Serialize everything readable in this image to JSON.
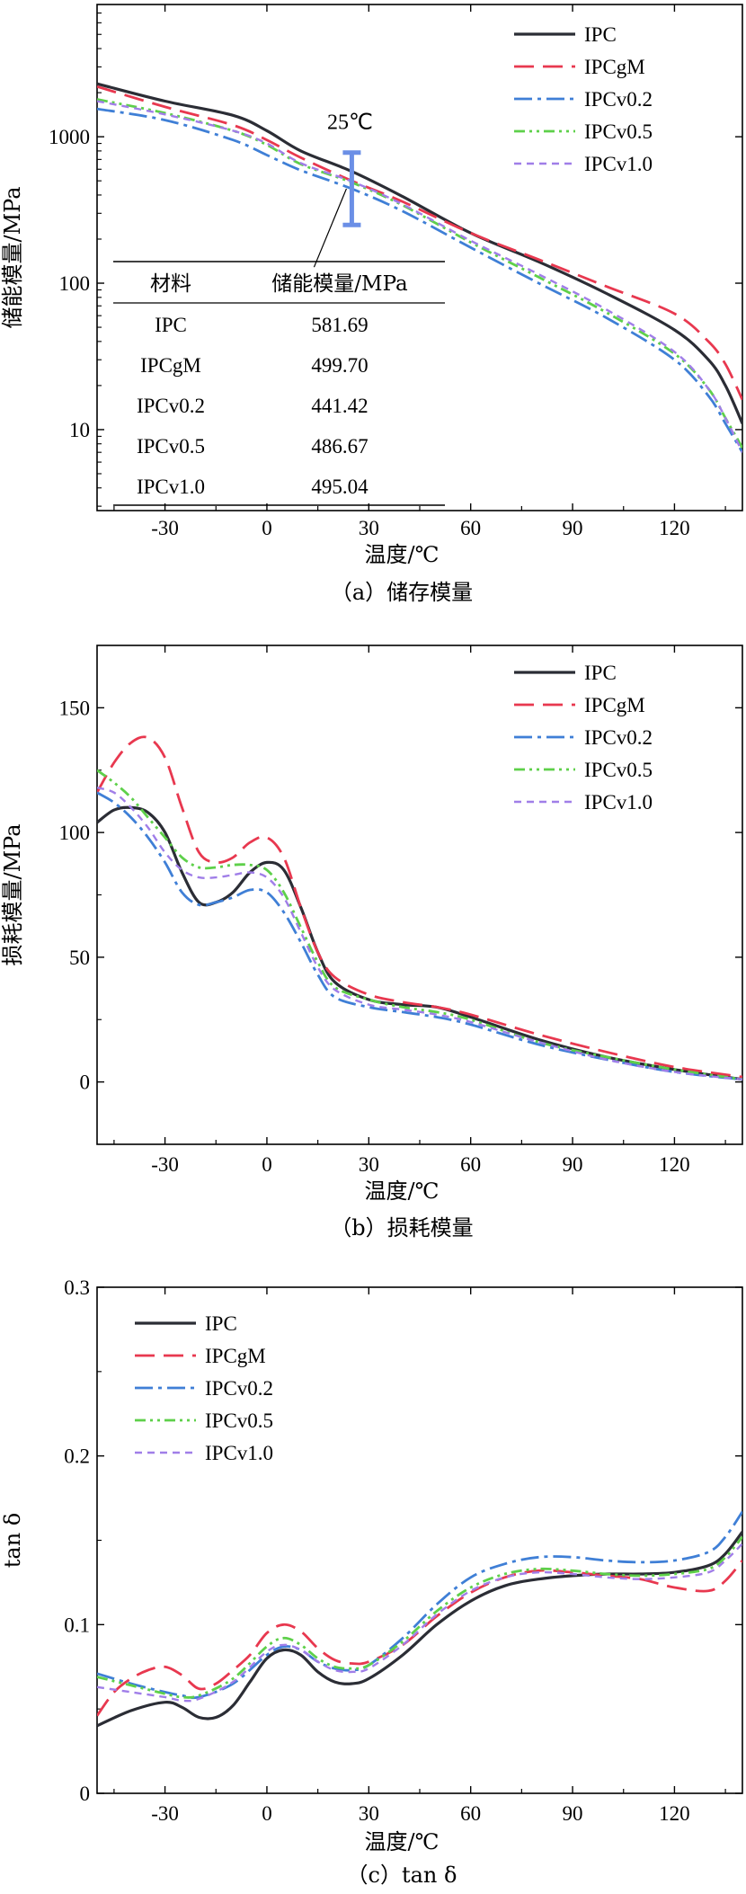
{
  "styles": {
    "IPC": {
      "color": "#2b2d35",
      "dash": "",
      "width": 3.2
    },
    "IPCgM": {
      "color": "#e8384f",
      "dash": "22 10",
      "width": 2.8
    },
    "IPCv0.2": {
      "color": "#3f7fd6",
      "dash": "20 6 4 6",
      "width": 2.8
    },
    "IPCv0.5": {
      "color": "#5ed04a",
      "dash": "12 5 3 5 3 5",
      "width": 2.8
    },
    "IPCv1.0": {
      "color": "#a07ee8",
      "dash": "8 6",
      "width": 2.4
    }
  },
  "chart_data": [
    {
      "type": "line",
      "caption": "（a）储存模量",
      "xlabel": "温度/℃",
      "ylabel": "储能模量/MPa",
      "yscale": "log",
      "xlim": [
        -50,
        140
      ],
      "ylim": [
        2.8,
        8000
      ],
      "xticks": [
        -30,
        0,
        30,
        60,
        90,
        120
      ],
      "yticks": [
        10,
        100,
        1000
      ],
      "legend_position": "top-right",
      "annotation": {
        "label": "25℃",
        "x": 25,
        "low": 250,
        "high": 780
      },
      "table": {
        "headers": [
          "材料",
          "储能模量/MPa"
        ],
        "rows": [
          [
            "IPC",
            "581.69"
          ],
          [
            "IPCgM",
            "499.70"
          ],
          [
            "IPCv0.2",
            "441.42"
          ],
          [
            "IPCv0.5",
            "486.67"
          ],
          [
            "IPCv1.0",
            "495.04"
          ]
        ]
      },
      "series": [
        {
          "name": "IPC",
          "x": [
            -50,
            -30,
            -10,
            0,
            10,
            25,
            40,
            60,
            80,
            100,
            120,
            130,
            135,
            140
          ],
          "y": [
            2300,
            1750,
            1400,
            1100,
            800,
            580,
            390,
            220,
            140,
            85,
            48,
            30,
            20,
            11
          ]
        },
        {
          "name": "IPCgM",
          "x": [
            -50,
            -30,
            -10,
            0,
            10,
            25,
            40,
            60,
            80,
            100,
            120,
            130,
            135,
            140
          ],
          "y": [
            2200,
            1600,
            1200,
            950,
            720,
            500,
            360,
            220,
            145,
            95,
            62,
            40,
            28,
            16
          ]
        },
        {
          "name": "IPCv0.2",
          "x": [
            -50,
            -30,
            -10,
            0,
            10,
            25,
            40,
            60,
            80,
            100,
            120,
            130,
            135,
            140
          ],
          "y": [
            1550,
            1300,
            950,
            750,
            590,
            441,
            310,
            175,
            100,
            58,
            30,
            17,
            11,
            7
          ]
        },
        {
          "name": "IPCv0.5",
          "x": [
            -50,
            -30,
            -10,
            0,
            10,
            25,
            40,
            60,
            80,
            100,
            120,
            130,
            135,
            140
          ],
          "y": [
            1800,
            1450,
            1100,
            880,
            650,
            487,
            340,
            190,
            110,
            63,
            33,
            19,
            12,
            7.5
          ]
        },
        {
          "name": "IPCv1.0",
          "x": [
            -50,
            -30,
            -10,
            0,
            10,
            25,
            40,
            60,
            80,
            100,
            120,
            130,
            135,
            140
          ],
          "y": [
            1750,
            1420,
            1100,
            900,
            660,
            495,
            345,
            195,
            115,
            66,
            34,
            19,
            12,
            7
          ]
        }
      ]
    },
    {
      "type": "line",
      "caption": "（b）损耗模量",
      "xlabel": "温度/℃",
      "ylabel": "损耗模量/MPa",
      "yscale": "linear",
      "xlim": [
        -50,
        140
      ],
      "ylim": [
        -25,
        175
      ],
      "xticks": [
        -30,
        0,
        30,
        60,
        90,
        120
      ],
      "yticks": [
        0,
        50,
        100,
        150
      ],
      "legend_position": "top-right",
      "series": [
        {
          "name": "IPC",
          "x": [
            -50,
            -45,
            -40,
            -35,
            -30,
            -25,
            -20,
            -15,
            -10,
            -5,
            0,
            5,
            10,
            15,
            20,
            30,
            40,
            50,
            60,
            80,
            100,
            120,
            140
          ],
          "y": [
            104,
            109,
            110,
            108,
            100,
            84,
            72,
            72,
            76,
            84,
            88,
            85,
            70,
            52,
            40,
            33,
            31,
            30,
            26,
            17,
            10,
            5,
            1
          ]
        },
        {
          "name": "IPCgM",
          "x": [
            -50,
            -45,
            -40,
            -35,
            -30,
            -25,
            -20,
            -15,
            -10,
            -5,
            0,
            5,
            10,
            15,
            20,
            30,
            40,
            50,
            60,
            80,
            100,
            120,
            140
          ],
          "y": [
            116,
            128,
            136,
            138,
            130,
            110,
            92,
            88,
            90,
            96,
            98,
            90,
            70,
            52,
            42,
            35,
            32,
            30,
            27,
            19,
            12,
            6,
            2
          ]
        },
        {
          "name": "IPCv0.2",
          "x": [
            -50,
            -45,
            -40,
            -35,
            -30,
            -25,
            -20,
            -15,
            -10,
            -5,
            0,
            5,
            10,
            15,
            20,
            30,
            40,
            50,
            60,
            80,
            100,
            120,
            140
          ],
          "y": [
            116,
            112,
            106,
            98,
            88,
            76,
            71,
            72,
            74,
            77,
            76,
            68,
            56,
            43,
            34,
            30,
            28,
            26,
            23,
            15,
            9,
            4,
            1
          ]
        },
        {
          "name": "IPCv0.5",
          "x": [
            -50,
            -45,
            -40,
            -35,
            -30,
            -25,
            -20,
            -15,
            -10,
            -5,
            0,
            5,
            10,
            15,
            20,
            30,
            40,
            50,
            60,
            80,
            100,
            120,
            140
          ],
          "y": [
            125,
            120,
            114,
            106,
            98,
            90,
            86,
            86,
            87,
            87,
            85,
            76,
            62,
            48,
            38,
            33,
            30,
            28,
            25,
            16,
            10,
            5,
            1
          ]
        },
        {
          "name": "IPCv1.0",
          "x": [
            -50,
            -45,
            -40,
            -35,
            -30,
            -25,
            -20,
            -15,
            -10,
            -5,
            0,
            5,
            10,
            15,
            20,
            30,
            40,
            50,
            60,
            80,
            100,
            120,
            140
          ],
          "y": [
            118,
            116,
            110,
            102,
            92,
            85,
            82,
            82,
            83,
            84,
            82,
            74,
            60,
            46,
            37,
            31,
            29,
            27,
            24,
            16,
            9,
            4,
            1
          ]
        }
      ]
    },
    {
      "type": "line",
      "caption": "（c）tan δ",
      "xlabel": "温度/℃",
      "ylabel": "tan δ",
      "yscale": "linear",
      "xlim": [
        -50,
        140
      ],
      "ylim": [
        0,
        0.3
      ],
      "xticks": [
        -30,
        0,
        30,
        60,
        90,
        120
      ],
      "yticks": [
        0,
        0.1,
        0.2,
        0.3
      ],
      "legend_position": "top-left",
      "series": [
        {
          "name": "IPC",
          "x": [
            -50,
            -40,
            -30,
            -25,
            -20,
            -15,
            -10,
            -5,
            0,
            5,
            10,
            15,
            20,
            25,
            30,
            40,
            50,
            60,
            70,
            80,
            90,
            100,
            110,
            120,
            130,
            135,
            140
          ],
          "y": [
            0.04,
            0.049,
            0.054,
            0.051,
            0.045,
            0.045,
            0.052,
            0.066,
            0.08,
            0.085,
            0.082,
            0.072,
            0.066,
            0.065,
            0.068,
            0.082,
            0.1,
            0.114,
            0.123,
            0.127,
            0.129,
            0.13,
            0.13,
            0.131,
            0.135,
            0.142,
            0.155
          ]
        },
        {
          "name": "IPCgM",
          "x": [
            -50,
            -45,
            -40,
            -35,
            -30,
            -25,
            -20,
            -15,
            -10,
            -5,
            0,
            5,
            10,
            15,
            20,
            25,
            30,
            40,
            50,
            60,
            70,
            80,
            90,
            100,
            110,
            120,
            130,
            135,
            140
          ],
          "y": [
            0.046,
            0.06,
            0.068,
            0.073,
            0.075,
            0.07,
            0.062,
            0.065,
            0.073,
            0.082,
            0.095,
            0.1,
            0.096,
            0.086,
            0.079,
            0.077,
            0.078,
            0.088,
            0.105,
            0.119,
            0.128,
            0.132,
            0.131,
            0.129,
            0.127,
            0.122,
            0.12,
            0.126,
            0.138
          ]
        },
        {
          "name": "IPCv0.2",
          "x": [
            -50,
            -40,
            -30,
            -25,
            -20,
            -10,
            0,
            5,
            10,
            15,
            20,
            25,
            30,
            40,
            50,
            60,
            70,
            80,
            90,
            100,
            110,
            120,
            130,
            135,
            140
          ],
          "y": [
            0.071,
            0.065,
            0.06,
            0.058,
            0.057,
            0.065,
            0.082,
            0.087,
            0.085,
            0.078,
            0.074,
            0.073,
            0.076,
            0.092,
            0.112,
            0.128,
            0.136,
            0.14,
            0.14,
            0.138,
            0.137,
            0.138,
            0.143,
            0.152,
            0.167
          ]
        },
        {
          "name": "IPCv0.5",
          "x": [
            -50,
            -40,
            -30,
            -25,
            -20,
            -10,
            0,
            5,
            10,
            15,
            20,
            25,
            30,
            40,
            50,
            60,
            70,
            80,
            90,
            100,
            110,
            120,
            130,
            135,
            140
          ],
          "y": [
            0.069,
            0.064,
            0.059,
            0.057,
            0.058,
            0.068,
            0.087,
            0.092,
            0.088,
            0.08,
            0.075,
            0.074,
            0.076,
            0.09,
            0.108,
            0.122,
            0.13,
            0.133,
            0.132,
            0.13,
            0.129,
            0.13,
            0.133,
            0.14,
            0.152
          ]
        },
        {
          "name": "IPCv1.0",
          "x": [
            -50,
            -40,
            -30,
            -25,
            -20,
            -10,
            0,
            5,
            10,
            15,
            20,
            25,
            30,
            40,
            50,
            60,
            70,
            80,
            90,
            100,
            110,
            120,
            130,
            135,
            140
          ],
          "y": [
            0.063,
            0.06,
            0.057,
            0.055,
            0.056,
            0.066,
            0.084,
            0.088,
            0.085,
            0.078,
            0.073,
            0.072,
            0.074,
            0.088,
            0.106,
            0.12,
            0.128,
            0.131,
            0.13,
            0.128,
            0.127,
            0.128,
            0.131,
            0.138,
            0.148
          ]
        }
      ]
    }
  ]
}
